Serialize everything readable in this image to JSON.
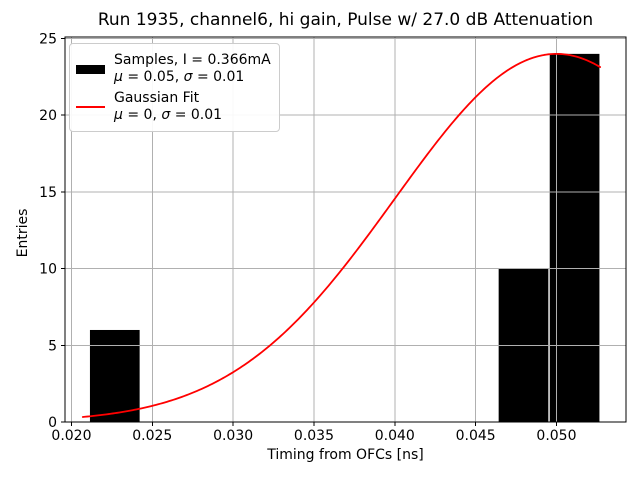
{
  "title": "Run 1935, channel6, hi gain, Pulse w/ 27.0 dB Attenuation",
  "legend": {
    "items": [
      {
        "swatch": "black-histogram-patch",
        "label": "Samples, I = 0.366mA",
        "sublabel": "μ = 0.05, σ = 0.01"
      },
      {
        "swatch": "red-fit-line",
        "label": "Gaussian Fit",
        "sublabel": "μ = 0, σ = 0.01"
      }
    ]
  },
  "chart_data": {
    "type": "bar",
    "title": "Run 1935, channel6, hi gain, Pulse w/ 27.0 dB Attenuation",
    "xlabel": "Timing from OFCs [ns]",
    "ylabel": "Entries",
    "xlim": [
      0.0196,
      0.0543
    ],
    "ylim": [
      0,
      25.1
    ],
    "xticks": [
      "0.020",
      "0.025",
      "0.030",
      "0.035",
      "0.040",
      "0.045",
      "0.050"
    ],
    "yticks": [
      "0",
      "5",
      "10",
      "15",
      "20",
      "25"
    ],
    "grid": true,
    "grid_over_bars": true,
    "legend_position": "upper left",
    "colors": {
      "histogram": "#000000",
      "fit": "#ff0000",
      "grid": "#b0b0b0",
      "spine": "#000000"
    },
    "histogram": {
      "label": "Samples, I = 0.366mA",
      "mu": 0.05,
      "sigma": 0.01,
      "current_mA": 0.366,
      "bin_edges": [
        0.0211,
        0.02426,
        0.02742,
        0.03058,
        0.03374,
        0.0369,
        0.04006,
        0.04322,
        0.04638,
        0.04954,
        0.0527
      ],
      "counts": [
        6,
        0,
        0,
        0,
        0,
        0,
        0,
        0,
        10,
        24
      ]
    },
    "gaussian_fit": {
      "label": "Gaussian Fit",
      "mu": 0.05,
      "sigma": 0.01,
      "amplitude": 24,
      "x_start": 0.0207,
      "x_end": 0.0527
    }
  }
}
